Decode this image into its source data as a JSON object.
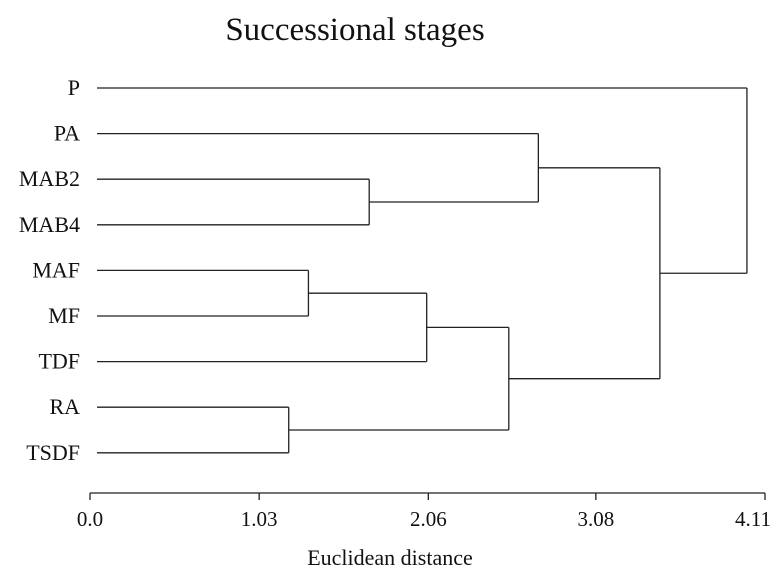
{
  "chart_data": {
    "type": "dendrogram",
    "title": "Successional stages",
    "xlabel": "Euclidean distance",
    "xlim": [
      0.0,
      4.11
    ],
    "ticks": [
      0.0,
      1.03,
      2.06,
      3.08,
      4.11
    ],
    "tick_labels": [
      "0.0",
      "1.03",
      "2.06",
      "3.08",
      "4.11"
    ],
    "leaves": [
      "P",
      "PA",
      "MAB2",
      "MAB4",
      "MAF",
      "MF",
      "TDF",
      "RA",
      "TSDF"
    ],
    "merges": [
      {
        "a": "MAF",
        "b": "MF",
        "height": 1.33
      },
      {
        "a": "RA",
        "b": "TSDF",
        "height": 1.21
      },
      {
        "a": "MAB2",
        "b": "MAB4",
        "height": 1.7
      },
      {
        "a": [
          "MAF",
          "MF"
        ],
        "b": "TDF",
        "height": 2.05
      },
      {
        "a": [
          "MAF",
          "MF",
          "TDF"
        ],
        "b": [
          "RA",
          "TSDF"
        ],
        "height": 2.55
      },
      {
        "a": "PA",
        "b": [
          "MAB2",
          "MAB4"
        ],
        "height": 2.73
      },
      {
        "a": [
          "PA",
          "MAB2",
          "MAB4"
        ],
        "b": [
          "MAF",
          "MF",
          "TDF",
          "RA",
          "TSDF"
        ],
        "height": 3.47
      },
      {
        "a": "P",
        "b": [
          "PA",
          "MAB2",
          "MAB4",
          "MAF",
          "MF",
          "TDF",
          "RA",
          "TSDF"
        ],
        "height": 4.0
      }
    ]
  }
}
